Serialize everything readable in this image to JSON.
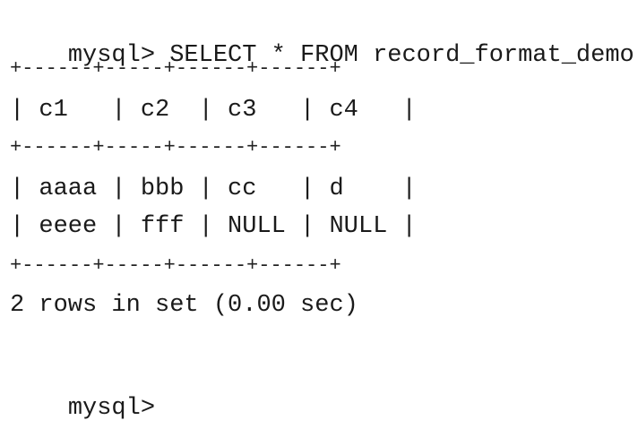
{
  "terminal": {
    "command_prompt": "mysql>",
    "command": "SELECT * FROM record_format_demo;",
    "table_border": "+------+-----+------+------+",
    "table_header": "| c1   | c2  | c3   | c4   |",
    "rows": [
      "| aaaa | bbb | cc   | d    |",
      "| eeee | fff | NULL | NULL |"
    ],
    "result_status": "2 rows in set (0.00 sec)",
    "final_prompt": "mysql>"
  }
}
